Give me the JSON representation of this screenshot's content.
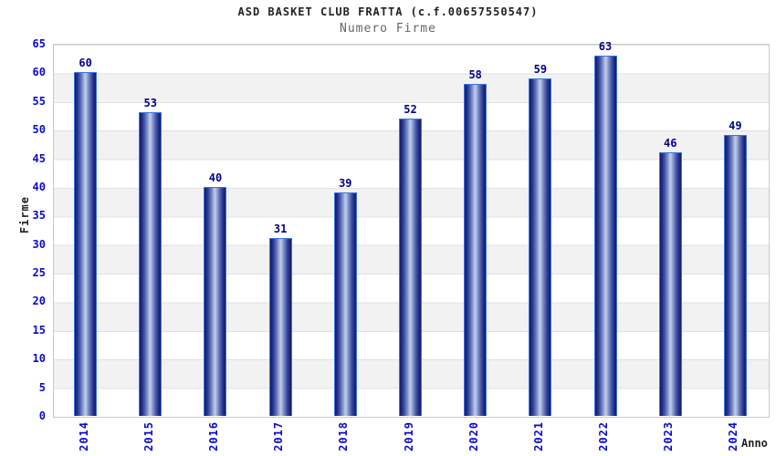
{
  "header": {
    "title": "ASD BASKET CLUB FRATTA (c.f.00657550547)",
    "subtitle": "Numero Firme"
  },
  "chart_data": {
    "type": "bar",
    "title": "ASD BASKET CLUB FRATTA (c.f.00657550547)",
    "subtitle": "Numero Firme",
    "categories": [
      "2014",
      "2015",
      "2016",
      "2017",
      "2018",
      "2019",
      "2020",
      "2021",
      "2022",
      "2023",
      "2024"
    ],
    "values": [
      60,
      53,
      40,
      31,
      39,
      52,
      58,
      59,
      63,
      46,
      49
    ],
    "xlabel": "Anno",
    "ylabel": "Firme",
    "ylim": [
      0,
      65
    ],
    "ytick_step": 5,
    "grid": "horizontal gridlines every 5 units with alternating white/gray bands",
    "legend": "none",
    "colors": {
      "bar_edge": "#3a76e0",
      "bar_dark": "#151b66",
      "bar_mid": "#5567ad",
      "bar_light": "#bcc7e8",
      "value_label": "#00008b",
      "tick_label": "#0a0acc",
      "band_gray": "#f2f2f2",
      "gridline": "#e0e0e0",
      "plot_border": "#c9c9c9",
      "title_color": "#222222",
      "subtitle_color": "#666666"
    }
  }
}
